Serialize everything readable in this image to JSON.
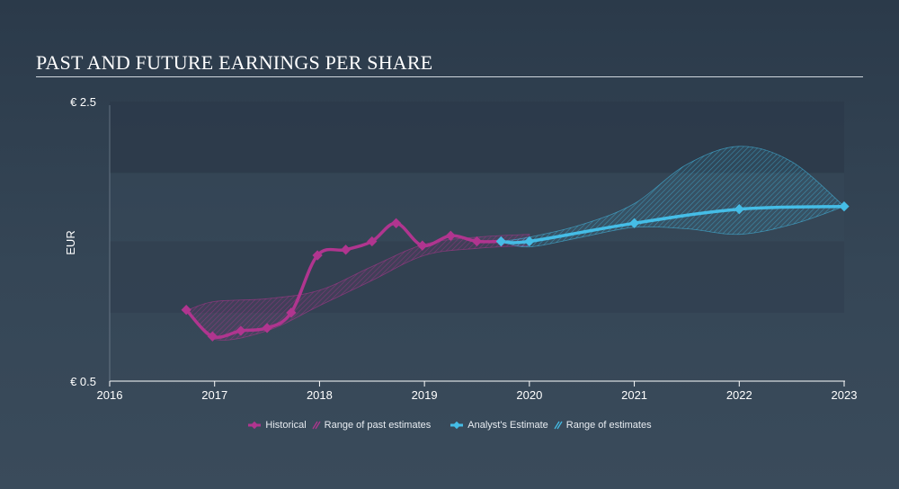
{
  "title": "PAST AND FUTURE EARNINGS PER SHARE",
  "colors": {
    "historical": "#b0358f",
    "estimate": "#45bde6",
    "band_dark": "#2c3a4a",
    "axis": "#ffffff"
  },
  "chart_data": {
    "type": "line",
    "ylabel": "EUR",
    "y_tick_labels": [
      "€ 2.5",
      "€ 0.5"
    ],
    "ylim": [
      0.5,
      2.5
    ],
    "xlim": [
      2016,
      2023
    ],
    "x_ticks": [
      2016,
      2017,
      2018,
      2019,
      2020,
      2021,
      2022,
      2023
    ],
    "x_tick_labels": [
      "2016",
      "2017",
      "2018",
      "2019",
      "2020",
      "2021",
      "2022",
      "2023"
    ],
    "grid": false,
    "legend_position": "bottom-center",
    "series": [
      {
        "name": "Historical",
        "points": [
          [
            2016.73,
            1.01
          ],
          [
            2016.98,
            0.82
          ],
          [
            2017.25,
            0.86
          ],
          [
            2017.5,
            0.88
          ],
          [
            2017.73,
            0.99
          ],
          [
            2017.98,
            1.4
          ],
          [
            2018.25,
            1.44
          ],
          [
            2018.5,
            1.5
          ],
          [
            2018.73,
            1.63
          ],
          [
            2018.98,
            1.47
          ],
          [
            2019.25,
            1.54
          ],
          [
            2019.5,
            1.5
          ],
          [
            2019.73,
            1.5
          ]
        ]
      },
      {
        "name": "Analyst's Estimate",
        "points": [
          [
            2019.73,
            1.5
          ],
          [
            2020.0,
            1.5
          ],
          [
            2021.0,
            1.63
          ],
          [
            2022.0,
            1.73
          ],
          [
            2023.0,
            1.75
          ]
        ]
      }
    ],
    "ranges": [
      {
        "name": "Range of past estimates",
        "upper": [
          [
            2016.75,
            1.01
          ],
          [
            2017.0,
            1.07
          ],
          [
            2017.5,
            1.09
          ],
          [
            2018.0,
            1.15
          ],
          [
            2018.5,
            1.32
          ],
          [
            2019.0,
            1.48
          ],
          [
            2019.5,
            1.53
          ],
          [
            2020.0,
            1.55
          ]
        ],
        "lower": [
          [
            2016.75,
            1.01
          ],
          [
            2017.0,
            0.8
          ],
          [
            2017.5,
            0.86
          ],
          [
            2018.0,
            1.04
          ],
          [
            2018.5,
            1.22
          ],
          [
            2019.0,
            1.4
          ],
          [
            2019.5,
            1.45
          ],
          [
            2020.0,
            1.47
          ]
        ]
      },
      {
        "name": "Range of estimates",
        "upper": [
          [
            2019.73,
            1.5
          ],
          [
            2020.0,
            1.53
          ],
          [
            2020.5,
            1.62
          ],
          [
            2021.0,
            1.77
          ],
          [
            2021.5,
            2.05
          ],
          [
            2022.0,
            2.18
          ],
          [
            2022.5,
            2.07
          ],
          [
            2023.0,
            1.75
          ]
        ],
        "lower": [
          [
            2019.73,
            1.5
          ],
          [
            2020.0,
            1.46
          ],
          [
            2020.5,
            1.53
          ],
          [
            2021.0,
            1.6
          ],
          [
            2021.5,
            1.59
          ],
          [
            2022.0,
            1.55
          ],
          [
            2022.5,
            1.62
          ],
          [
            2023.0,
            1.75
          ]
        ]
      }
    ],
    "shaded_bands": [
      [
        0.99,
        1.5
      ],
      [
        1.99,
        2.5
      ]
    ]
  },
  "legend": [
    {
      "label": "Historical",
      "kind": "line",
      "color": "#b0358f"
    },
    {
      "label": "Range of past estimates",
      "kind": "hatch",
      "color": "#b0358f"
    },
    {
      "label": "Analyst's Estimate",
      "kind": "line",
      "color": "#45bde6"
    },
    {
      "label": "Range of estimates",
      "kind": "hatch",
      "color": "#45bde6"
    }
  ]
}
